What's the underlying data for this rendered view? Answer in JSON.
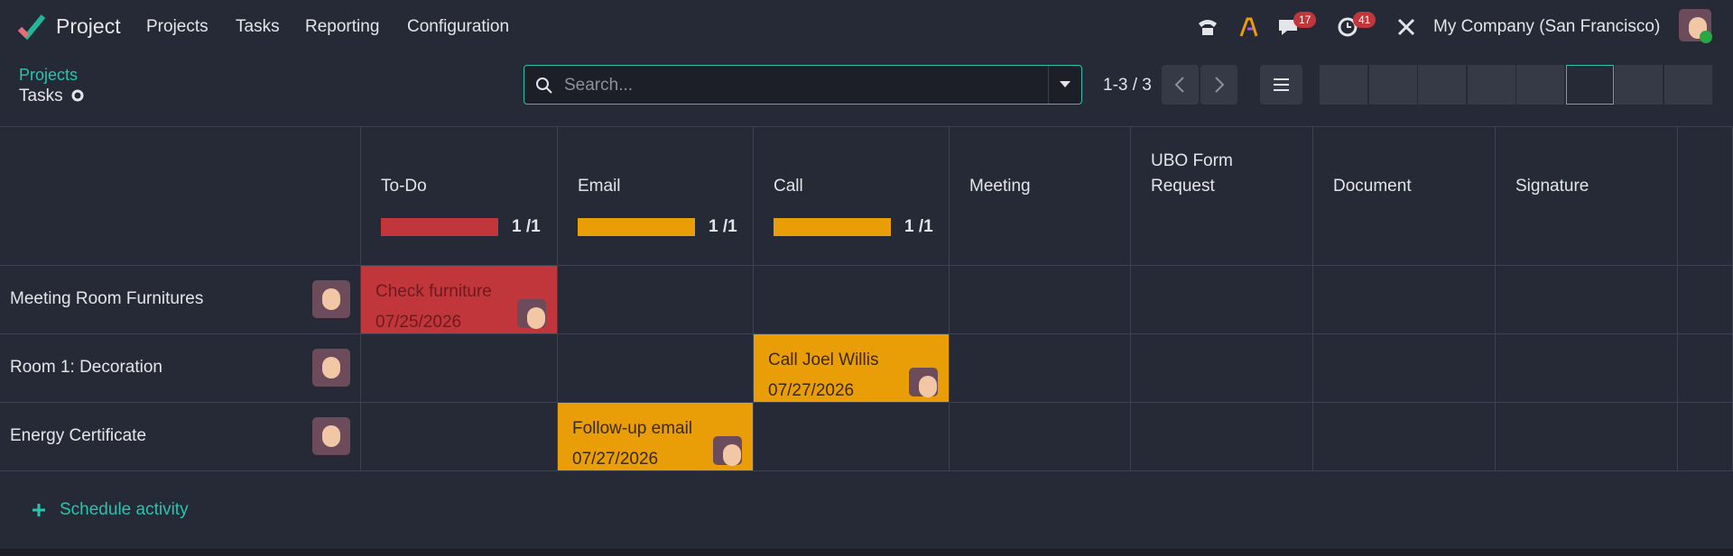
{
  "navbar": {
    "app": "Project",
    "menu": [
      "Projects",
      "Tasks",
      "Reporting",
      "Configuration"
    ],
    "messages_badge": "17",
    "activities_badge": "41",
    "company": "My Company (San Francisco)"
  },
  "breadcrumb": {
    "parent": "Projects",
    "current": "Tasks"
  },
  "search": {
    "placeholder": "Search..."
  },
  "pager": "1-3 / 3",
  "columns": [
    {
      "name": "To-Do",
      "progress": "1 /1",
      "color": "#c0363a",
      "text_color": "#6e1a1e"
    },
    {
      "name": "Email",
      "progress": "1 /1",
      "color": "#e99d06",
      "text_color": "#3a2a05"
    },
    {
      "name": "Call",
      "progress": "1 /1",
      "color": "#e99d06",
      "text_color": "#3a2a05"
    },
    {
      "name": "Meeting",
      "progress": null,
      "color": null,
      "text_color": null
    },
    {
      "name": "UBO Form Request",
      "progress": null,
      "color": null,
      "text_color": null
    },
    {
      "name": "Document",
      "progress": null,
      "color": null,
      "text_color": null
    },
    {
      "name": "Signature",
      "progress": null,
      "color": null,
      "text_color": null
    }
  ],
  "rows": [
    {
      "name": "Meeting Room Furnitures",
      "cells": [
        {
          "title": "Check furniture",
          "date": "07/25/2026"
        },
        null,
        null,
        null,
        null,
        null,
        null
      ]
    },
    {
      "name": "Room 1: Decoration",
      "cells": [
        null,
        null,
        {
          "title": "Call Joel Willis",
          "date": "07/27/2026"
        },
        null,
        null,
        null,
        null
      ]
    },
    {
      "name": "Energy Certificate",
      "cells": [
        null,
        {
          "title": "Follow-up email",
          "date": "07/27/2026"
        },
        null,
        null,
        null,
        null,
        null
      ]
    }
  ],
  "footer_action": "Schedule activity"
}
